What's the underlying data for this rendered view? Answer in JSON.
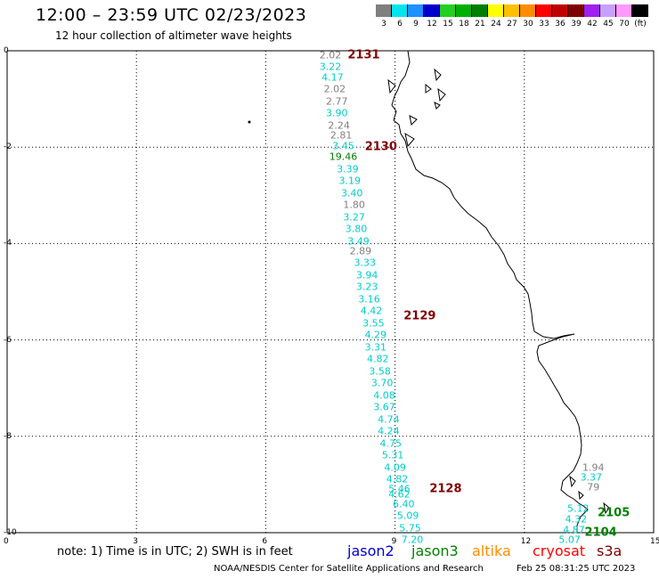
{
  "header": {
    "title": "12:00 – 23:59 UTC 02/23/2023",
    "subtitle": "12 hour collection of altimeter wave heights"
  },
  "colorbar": {
    "labels": [
      "3",
      "6",
      "9",
      "12",
      "15",
      "18",
      "21",
      "24",
      "27",
      "30",
      "33",
      "36",
      "39",
      "42",
      "45",
      "70",
      "(ft)"
    ],
    "colors": [
      "#7f7f7f",
      "#00e5ee",
      "#1e90ff",
      "#0000cd",
      "#22d022",
      "#00b000",
      "#008000",
      "#ffff00",
      "#ffc000",
      "#ff8c00",
      "#ff0000",
      "#c00000",
      "#800000",
      "#a020f0",
      "#c8a0ff",
      "#ff99ff",
      "#000000"
    ]
  },
  "axes": {
    "x_ticks": [
      "0",
      "3",
      "6",
      "9",
      "12",
      "15"
    ],
    "y_ticks": [
      "0",
      "-2",
      "-4",
      "-6",
      "-8",
      "-10"
    ]
  },
  "revolutions": [
    {
      "label": "2131",
      "lon": 7.9,
      "lat": -0.1,
      "color": "#800000"
    },
    {
      "label": "2130",
      "lon": 8.3,
      "lat": -2.0,
      "color": "#800000"
    },
    {
      "label": "2129",
      "lon": 9.2,
      "lat": -5.5,
      "color": "#800000"
    },
    {
      "label": "2128",
      "lon": 9.8,
      "lat": -9.1,
      "color": "#800000"
    },
    {
      "label": "2105",
      "lon": 13.7,
      "lat": -9.6,
      "color": "#008000"
    },
    {
      "label": "2104",
      "lon": 13.4,
      "lat": -10.0,
      "color": "#008000"
    }
  ],
  "measurements": [
    {
      "value": "2.02",
      "lon": 7.5,
      "lat": -0.1,
      "color": "#808080"
    },
    {
      "value": "3.22",
      "lon": 7.5,
      "lat": -0.33,
      "color": "#00cccc"
    },
    {
      "value": "4.17",
      "lon": 7.55,
      "lat": -0.55,
      "color": "#00cccc"
    },
    {
      "value": "2.02",
      "lon": 7.6,
      "lat": -0.8,
      "color": "#808080"
    },
    {
      "value": "2.77",
      "lon": 7.65,
      "lat": -1.05,
      "color": "#808080"
    },
    {
      "value": "3.90",
      "lon": 7.65,
      "lat": -1.3,
      "color": "#00cccc"
    },
    {
      "value": "2.24",
      "lon": 7.7,
      "lat": -1.55,
      "color": "#808080"
    },
    {
      "value": "2.81",
      "lon": 7.75,
      "lat": -1.75,
      "color": "#808080"
    },
    {
      "value": "3.45",
      "lon": 7.8,
      "lat": -1.98,
      "color": "#00cccc"
    },
    {
      "value": "19.46",
      "lon": 7.8,
      "lat": -2.2,
      "color": "#008000"
    },
    {
      "value": "3.39",
      "lon": 7.9,
      "lat": -2.45,
      "color": "#00cccc"
    },
    {
      "value": "3.19",
      "lon": 7.95,
      "lat": -2.7,
      "color": "#00cccc"
    },
    {
      "value": "3.40",
      "lon": 8.0,
      "lat": -2.95,
      "color": "#00cccc"
    },
    {
      "value": "1.80",
      "lon": 8.05,
      "lat": -3.2,
      "color": "#808080"
    },
    {
      "value": "3.27",
      "lon": 8.05,
      "lat": -3.45,
      "color": "#00cccc"
    },
    {
      "value": "3.80",
      "lon": 8.1,
      "lat": -3.7,
      "color": "#00cccc"
    },
    {
      "value": "3.49",
      "lon": 8.15,
      "lat": -3.95,
      "color": "#00cccc"
    },
    {
      "value": "2.89",
      "lon": 8.2,
      "lat": -4.15,
      "color": "#808080"
    },
    {
      "value": "3.33",
      "lon": 8.3,
      "lat": -4.4,
      "color": "#00cccc"
    },
    {
      "value": "3.94",
      "lon": 8.35,
      "lat": -4.65,
      "color": "#00cccc"
    },
    {
      "value": "3.23",
      "lon": 8.35,
      "lat": -4.9,
      "color": "#00cccc"
    },
    {
      "value": "3.16",
      "lon": 8.4,
      "lat": -5.15,
      "color": "#00cccc"
    },
    {
      "value": "4.42",
      "lon": 8.45,
      "lat": -5.4,
      "color": "#00cccc"
    },
    {
      "value": "3.55",
      "lon": 8.5,
      "lat": -5.65,
      "color": "#00cccc"
    },
    {
      "value": "4.29",
      "lon": 8.55,
      "lat": -5.9,
      "color": "#00cccc"
    },
    {
      "value": "3.31",
      "lon": 8.55,
      "lat": -6.15,
      "color": "#00cccc"
    },
    {
      "value": "4.82",
      "lon": 8.6,
      "lat": -6.4,
      "color": "#00cccc"
    },
    {
      "value": "3.58",
      "lon": 8.65,
      "lat": -6.65,
      "color": "#00cccc"
    },
    {
      "value": "3.70",
      "lon": 8.7,
      "lat": -6.9,
      "color": "#00cccc"
    },
    {
      "value": "4.08",
      "lon": 8.75,
      "lat": -7.15,
      "color": "#00cccc"
    },
    {
      "value": "3.67",
      "lon": 8.75,
      "lat": -7.4,
      "color": "#00cccc"
    },
    {
      "value": "4.74",
      "lon": 8.85,
      "lat": -7.65,
      "color": "#00cccc"
    },
    {
      "value": "4.24",
      "lon": 8.85,
      "lat": -7.9,
      "color": "#00cccc"
    },
    {
      "value": "4.75",
      "lon": 8.9,
      "lat": -8.15,
      "color": "#00cccc"
    },
    {
      "value": "5.31",
      "lon": 8.95,
      "lat": -8.4,
      "color": "#00cccc"
    },
    {
      "value": "4.09",
      "lon": 9.0,
      "lat": -8.65,
      "color": "#00cccc"
    },
    {
      "value": "4.82",
      "lon": 9.05,
      "lat": -8.9,
      "color": "#00cccc"
    },
    {
      "value": "5.46",
      "lon": 9.1,
      "lat": -9.1,
      "color": "#00cccc"
    },
    {
      "value": "4.62",
      "lon": 9.1,
      "lat": -9.2,
      "color": "#00cccc"
    },
    {
      "value": "6.40",
      "lon": 9.2,
      "lat": -9.4,
      "color": "#00cccc"
    },
    {
      "value": "5.09",
      "lon": 9.3,
      "lat": -9.65,
      "color": "#00cccc"
    },
    {
      "value": "5.75",
      "lon": 9.35,
      "lat": -9.9,
      "color": "#00cccc"
    },
    {
      "value": "7.20",
      "lon": 9.4,
      "lat": -10.15,
      "color": "#00cccc"
    },
    {
      "value": "1.94",
      "lon": 13.6,
      "lat": -8.65,
      "color": "#808080"
    },
    {
      "value": "3.37",
      "lon": 13.55,
      "lat": -8.85,
      "color": "#00cccc"
    },
    {
      "value": "79",
      "lon": 13.6,
      "lat": -9.05,
      "color": "#808080"
    },
    {
      "value": "5.12",
      "lon": 13.25,
      "lat": -9.5,
      "color": "#00cccc"
    },
    {
      "value": "4.32",
      "lon": 13.2,
      "lat": -9.72,
      "color": "#00cccc"
    },
    {
      "value": "4.87",
      "lon": 13.15,
      "lat": -9.94,
      "color": "#00cccc"
    },
    {
      "value": "5.07",
      "lon": 13.05,
      "lat": -10.15,
      "color": "#00cccc"
    }
  ],
  "note": "note: 1) Time is in UTC; 2) SWH is in feet",
  "legend": [
    {
      "label": "jason2",
      "color": "#0000cd"
    },
    {
      "label": "jason3",
      "color": "#008000"
    },
    {
      "label": "altika",
      "color": "#ff8c00"
    },
    {
      "label": "cryosat",
      "color": "#ff0000"
    },
    {
      "label": "s3a",
      "color": "#800000"
    }
  ],
  "footer": {
    "credit": "NOAA/NESDIS Center for Satellite Applications and Research",
    "timestamp": "Feb 25 08:31:25 UTC 2023"
  }
}
